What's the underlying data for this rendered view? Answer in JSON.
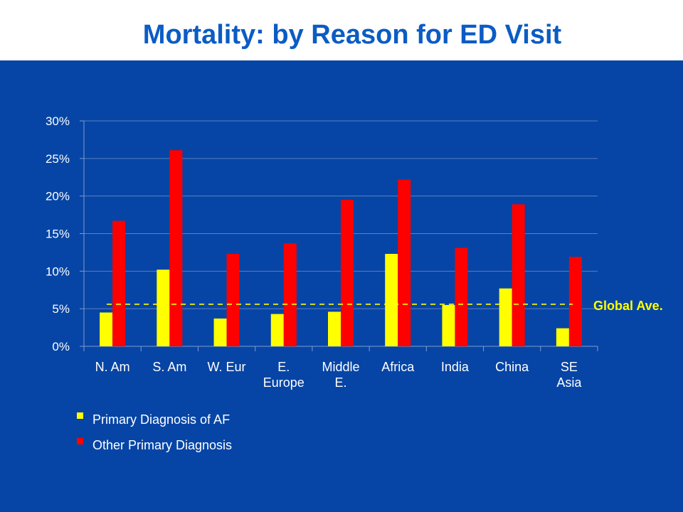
{
  "slide": {
    "title": "Mortality: by Reason for ED Visit"
  },
  "colors": {
    "background": "#0645A5",
    "primary_af": "#FFFF00",
    "other": "#FF0000",
    "axis_text": "#FFFFFF",
    "title": "#0B5CC4"
  },
  "chart_data": {
    "type": "bar",
    "title": "",
    "xlabel": "",
    "ylabel": "",
    "categories": [
      [
        "N. Am"
      ],
      [
        "S. Am"
      ],
      [
        "W. Eur"
      ],
      [
        "E.",
        "Europe"
      ],
      [
        "Middle",
        "E."
      ],
      [
        "Africa"
      ],
      [
        "India"
      ],
      [
        "China"
      ],
      [
        "SE",
        "Asia"
      ]
    ],
    "series": [
      {
        "name": "Primary Diagnosis of AF",
        "color": "#FFFF00",
        "values": [
          4.5,
          10.2,
          3.7,
          4.3,
          4.6,
          12.3,
          5.5,
          7.7,
          2.4
        ]
      },
      {
        "name": "Other Primary Diagnosis",
        "color": "#FF0000",
        "values": [
          16.7,
          26.1,
          12.3,
          13.7,
          19.5,
          22.2,
          13.1,
          18.9,
          11.9
        ]
      }
    ],
    "ylim": [
      0,
      30
    ],
    "yticks": [
      0,
      5,
      10,
      15,
      20,
      25,
      30
    ],
    "ytick_format": "percent",
    "grid": true,
    "legend_position": "bottom-left",
    "reference_line": {
      "label": "Global Ave.",
      "value": 5.6,
      "style": "dashed",
      "color": "#FFFF00"
    }
  }
}
